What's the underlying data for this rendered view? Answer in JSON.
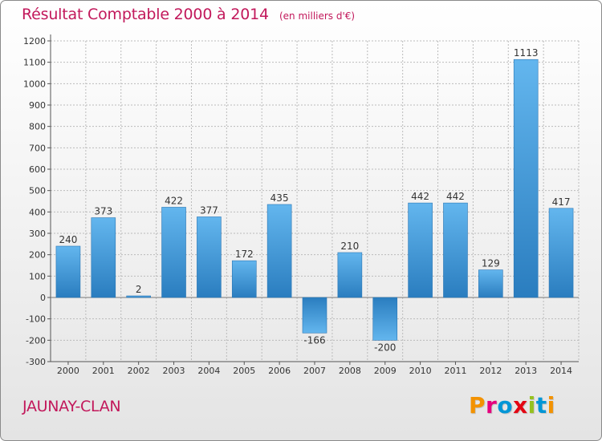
{
  "header": {
    "title": "Résultat Comptable 2000 à 2014",
    "subtitle": "(en milliers d'€)"
  },
  "footer": {
    "place": "JAUNAY-CLAN",
    "brand": "Proxiti",
    "brand_colors": [
      "#f39200",
      "#e6007e",
      "#0096d6",
      "#e30613",
      "#95c11f",
      "#0096d6",
      "#f39200"
    ]
  },
  "chart_data": {
    "type": "bar",
    "categories": [
      "2000",
      "2001",
      "2002",
      "2003",
      "2004",
      "2005",
      "2006",
      "2007",
      "2008",
      "2009",
      "2010",
      "2011",
      "2012",
      "2013",
      "2014"
    ],
    "values": [
      240,
      373,
      2,
      422,
      377,
      172,
      435,
      -166,
      210,
      -200,
      442,
      442,
      129,
      1113,
      417
    ],
    "value_labels": [
      "240",
      "373",
      "2",
      "422",
      "377",
      "172",
      "435",
      "-166",
      "210",
      "-200",
      "442",
      "442",
      "129",
      "1113",
      "417"
    ],
    "yticks": [
      -300,
      -200,
      -100,
      0,
      100,
      200,
      300,
      400,
      500,
      600,
      700,
      800,
      900,
      1000,
      1100,
      1200
    ],
    "ylim": [
      -300,
      1200
    ],
    "grid": true,
    "bar_color": "#3d95d4",
    "grid_color": "#bbbbbb"
  }
}
